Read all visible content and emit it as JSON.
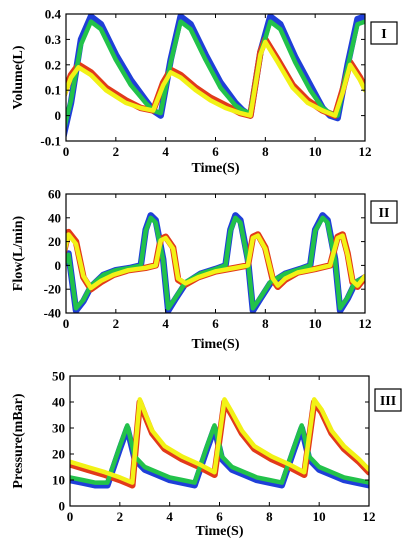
{
  "colors": {
    "blue": "#1f3fd8",
    "green": "#22c24a",
    "red": "#e23a1a",
    "yellow": "#f2f216",
    "axis": "#000000",
    "background": "#ffffff"
  },
  "chart_data": [
    {
      "type": "line",
      "panel_label": "I",
      "xlabel": "Time(S)",
      "ylabel": "Volume(L)",
      "xlim": [
        0,
        12
      ],
      "ylim": [
        -0.1,
        0.4
      ],
      "xticks": [
        0,
        2,
        4,
        6,
        8,
        10,
        12
      ],
      "xticklabels": [
        "0",
        "2",
        "4",
        "6",
        "8",
        "10",
        "12"
      ],
      "yticks": [
        -0.1,
        0,
        0.1,
        0.2,
        0.3,
        0.4
      ],
      "yticklabels": [
        "-0.1",
        "0",
        "0.1",
        "0.2",
        "0.3",
        "0.4"
      ],
      "grid": false,
      "series": [
        {
          "color": "blue",
          "x": [
            -0.1,
            0.2,
            0.6,
            1.0,
            1.4,
            2.0,
            2.6,
            3.2,
            3.5,
            3.8,
            4.2,
            4.6,
            5.0,
            5.6,
            6.2,
            6.8,
            7.1,
            7.4,
            7.8,
            8.2,
            8.6,
            9.2,
            9.8,
            10.3,
            10.6,
            10.9,
            11.3,
            11.7,
            12.0
          ],
          "y": [
            -0.08,
            0.05,
            0.3,
            0.39,
            0.36,
            0.24,
            0.14,
            0.06,
            0.02,
            0.0,
            0.22,
            0.39,
            0.36,
            0.24,
            0.13,
            0.05,
            0.02,
            0.0,
            0.25,
            0.39,
            0.36,
            0.23,
            0.12,
            0.03,
            0.0,
            -0.01,
            0.2,
            0.38,
            0.39
          ]
        },
        {
          "color": "green",
          "x": [
            -0.1,
            0.2,
            0.6,
            1.0,
            1.4,
            2.0,
            2.6,
            3.2,
            3.5,
            3.8,
            4.2,
            4.6,
            5.0,
            5.6,
            6.2,
            6.8,
            7.1,
            7.4,
            7.8,
            8.2,
            8.6,
            9.2,
            9.8,
            10.3,
            10.6,
            10.9,
            11.3,
            11.7,
            12.0
          ],
          "y": [
            -0.06,
            0.06,
            0.28,
            0.37,
            0.34,
            0.22,
            0.12,
            0.05,
            0.02,
            0.01,
            0.21,
            0.37,
            0.34,
            0.22,
            0.11,
            0.04,
            0.02,
            0.01,
            0.24,
            0.37,
            0.34,
            0.21,
            0.1,
            0.03,
            0.01,
            0.0,
            0.19,
            0.36,
            0.37
          ]
        },
        {
          "color": "red",
          "x": [
            -0.1,
            0.2,
            0.5,
            1.0,
            1.6,
            2.4,
            3.0,
            3.5,
            3.9,
            4.2,
            4.6,
            5.2,
            5.8,
            6.4,
            7.0,
            7.4,
            7.8,
            8.0,
            8.5,
            9.1,
            9.7,
            10.3,
            10.8,
            11.1,
            11.4,
            11.8,
            12.0
          ],
          "y": [
            0.08,
            0.16,
            0.2,
            0.17,
            0.11,
            0.06,
            0.03,
            0.02,
            0.13,
            0.18,
            0.16,
            0.11,
            0.07,
            0.04,
            0.01,
            0.0,
            0.25,
            0.3,
            0.22,
            0.12,
            0.06,
            0.02,
            0.0,
            0.1,
            0.21,
            0.15,
            0.11
          ]
        },
        {
          "color": "yellow",
          "x": [
            -0.1,
            0.2,
            0.5,
            1.0,
            1.6,
            2.4,
            3.0,
            3.5,
            3.9,
            4.2,
            4.6,
            5.2,
            5.8,
            6.4,
            7.0,
            7.4,
            7.8,
            8.0,
            8.5,
            9.1,
            9.7,
            10.3,
            10.8,
            11.1,
            11.4,
            11.8,
            12.0
          ],
          "y": [
            0.07,
            0.15,
            0.19,
            0.16,
            0.1,
            0.05,
            0.03,
            0.02,
            0.12,
            0.17,
            0.15,
            0.1,
            0.06,
            0.03,
            0.01,
            0.0,
            0.24,
            0.29,
            0.21,
            0.11,
            0.05,
            0.02,
            0.0,
            0.09,
            0.2,
            0.14,
            0.1
          ]
        }
      ]
    },
    {
      "type": "line",
      "panel_label": "II",
      "xlabel": "Time(S)",
      "ylabel": "Flow(L/min)",
      "xlim": [
        0,
        12
      ],
      "ylim": [
        -40,
        60
      ],
      "xticks": [
        0,
        2,
        4,
        6,
        8,
        10,
        12
      ],
      "xticklabels": [
        "0",
        "2",
        "4",
        "6",
        "8",
        "10",
        "12"
      ],
      "yticks": [
        -40,
        -20,
        0,
        20,
        40,
        60
      ],
      "yticklabels": [
        "-40",
        "-20",
        "0",
        "20",
        "40",
        "60"
      ],
      "grid": false,
      "series": [
        {
          "color": "blue",
          "x": [
            -0.1,
            0.1,
            0.4,
            0.7,
            1.0,
            1.5,
            2.0,
            2.6,
            3.0,
            3.2,
            3.4,
            3.6,
            3.9,
            4.1,
            4.4,
            4.8,
            5.4,
            6.0,
            6.4,
            6.6,
            6.8,
            7.0,
            7.3,
            7.5,
            7.8,
            8.2,
            8.8,
            9.4,
            9.8,
            10.0,
            10.3,
            10.5,
            10.8,
            11.0,
            11.3,
            11.6,
            12.0
          ],
          "y": [
            0,
            10,
            -38,
            -30,
            -18,
            -8,
            -4,
            -2,
            0,
            30,
            42,
            38,
            5,
            -38,
            -28,
            -15,
            -7,
            -3,
            0,
            30,
            42,
            38,
            5,
            -38,
            -28,
            -15,
            -7,
            -3,
            0,
            30,
            42,
            38,
            5,
            -38,
            -28,
            -15,
            -10
          ]
        },
        {
          "color": "green",
          "x": [
            -0.1,
            0.1,
            0.4,
            0.7,
            1.0,
            1.5,
            2.0,
            2.6,
            3.0,
            3.2,
            3.4,
            3.6,
            3.9,
            4.1,
            4.4,
            4.8,
            5.4,
            6.0,
            6.4,
            6.6,
            6.8,
            7.0,
            7.3,
            7.5,
            7.8,
            8.2,
            8.8,
            9.4,
            9.8,
            10.0,
            10.3,
            10.5,
            10.8,
            11.0,
            11.3,
            11.6,
            12.0
          ],
          "y": [
            0,
            9,
            -36,
            -29,
            -17,
            -8,
            -4,
            -2,
            0,
            29,
            40,
            36,
            4,
            -36,
            -27,
            -14,
            -7,
            -3,
            0,
            29,
            40,
            36,
            4,
            -36,
            -27,
            -14,
            -7,
            -3,
            0,
            29,
            40,
            36,
            4,
            -36,
            -27,
            -14,
            -10
          ]
        },
        {
          "color": "red",
          "x": [
            -0.1,
            0.1,
            0.4,
            0.7,
            1.0,
            1.4,
            1.9,
            2.5,
            3.2,
            3.6,
            3.8,
            4.0,
            4.3,
            4.5,
            4.8,
            5.3,
            6.0,
            6.8,
            7.3,
            7.5,
            7.7,
            8.0,
            8.3,
            8.5,
            8.8,
            9.3,
            10.0,
            10.6,
            10.9,
            11.1,
            11.3,
            11.5,
            11.7,
            12.0
          ],
          "y": [
            10,
            28,
            20,
            -10,
            -20,
            -14,
            -8,
            -4,
            -2,
            0,
            22,
            24,
            15,
            -12,
            -16,
            -10,
            -5,
            -2,
            0,
            24,
            26,
            15,
            -12,
            -18,
            -12,
            -6,
            -3,
            0,
            24,
            26,
            10,
            -14,
            -18,
            -10
          ]
        },
        {
          "color": "yellow",
          "x": [
            -0.1,
            0.1,
            0.4,
            0.7,
            1.0,
            1.4,
            1.9,
            2.5,
            3.2,
            3.6,
            3.8,
            4.0,
            4.3,
            4.5,
            4.8,
            5.3,
            6.0,
            6.8,
            7.3,
            7.5,
            7.7,
            8.0,
            8.3,
            8.5,
            8.8,
            9.3,
            10.0,
            10.6,
            10.9,
            11.1,
            11.3,
            11.5,
            11.7,
            12.0
          ],
          "y": [
            9,
            26,
            18,
            -9,
            -19,
            -13,
            -8,
            -4,
            -2,
            0,
            21,
            23,
            14,
            -11,
            -15,
            -10,
            -5,
            -2,
            0,
            23,
            25,
            14,
            -11,
            -17,
            -11,
            -6,
            -3,
            0,
            23,
            25,
            9,
            -13,
            -17,
            -9
          ]
        }
      ]
    },
    {
      "type": "line",
      "panel_label": "III",
      "xlabel": "Time(S)",
      "ylabel": "Pressure(mBar)",
      "xlim": [
        0,
        12
      ],
      "ylim": [
        0,
        50
      ],
      "xticks": [
        0,
        2,
        4,
        6,
        8,
        10,
        12
      ],
      "xticklabels": [
        "0",
        "2",
        "4",
        "6",
        "8",
        "10",
        "12"
      ],
      "yticks": [
        0,
        10,
        20,
        30,
        40,
        50
      ],
      "yticklabels": [
        "0",
        "10",
        "20",
        "30",
        "40",
        "50"
      ],
      "grid": false,
      "series": [
        {
          "color": "blue",
          "x": [
            0,
            0.5,
            1.0,
            1.5,
            2.0,
            2.3,
            2.6,
            3.0,
            3.5,
            4.0,
            4.5,
            5.0,
            5.5,
            5.8,
            6.1,
            6.5,
            7.0,
            7.5,
            8.0,
            8.5,
            9.0,
            9.3,
            9.6,
            10.0,
            10.5,
            11.0,
            11.5,
            12.0
          ],
          "y": [
            10,
            9,
            8,
            8,
            22,
            30,
            18,
            14,
            12,
            10,
            9,
            8,
            22,
            30,
            18,
            14,
            12,
            10,
            9,
            8,
            22,
            30,
            18,
            14,
            12,
            10,
            9,
            8
          ]
        },
        {
          "color": "green",
          "x": [
            0,
            0.5,
            1.0,
            1.5,
            2.0,
            2.3,
            2.6,
            3.0,
            3.5,
            4.0,
            4.5,
            5.0,
            5.5,
            5.8,
            6.1,
            6.5,
            7.0,
            7.5,
            8.0,
            8.5,
            9.0,
            9.3,
            9.6,
            10.0,
            10.5,
            11.0,
            11.5,
            12.0
          ],
          "y": [
            11,
            10,
            9,
            9,
            23,
            31,
            19,
            15,
            13,
            11,
            10,
            9,
            23,
            31,
            19,
            15,
            13,
            11,
            10,
            9,
            23,
            31,
            19,
            15,
            13,
            11,
            10,
            9
          ]
        },
        {
          "color": "red",
          "x": [
            0,
            0.7,
            1.4,
            2.0,
            2.5,
            2.8,
            3.0,
            3.3,
            3.8,
            4.5,
            5.2,
            5.8,
            6.2,
            6.5,
            6.9,
            7.4,
            8.1,
            8.8,
            9.4,
            9.8,
            10.1,
            10.5,
            11.0,
            11.6,
            12.0
          ],
          "y": [
            16,
            14,
            12,
            10,
            8,
            40,
            35,
            28,
            22,
            18,
            15,
            12,
            40,
            35,
            28,
            22,
            18,
            15,
            12,
            40,
            36,
            28,
            22,
            17,
            13
          ]
        },
        {
          "color": "yellow",
          "x": [
            0,
            0.7,
            1.4,
            2.0,
            2.5,
            2.8,
            3.0,
            3.3,
            3.8,
            4.5,
            5.2,
            5.8,
            6.2,
            6.5,
            6.9,
            7.4,
            8.1,
            8.8,
            9.4,
            9.8,
            10.1,
            10.5,
            11.0,
            11.6,
            12.0
          ],
          "y": [
            17,
            15,
            13,
            11,
            9,
            41,
            36,
            29,
            23,
            19,
            16,
            13,
            41,
            36,
            29,
            23,
            19,
            16,
            13,
            41,
            37,
            29,
            23,
            18,
            14
          ]
        }
      ]
    }
  ]
}
